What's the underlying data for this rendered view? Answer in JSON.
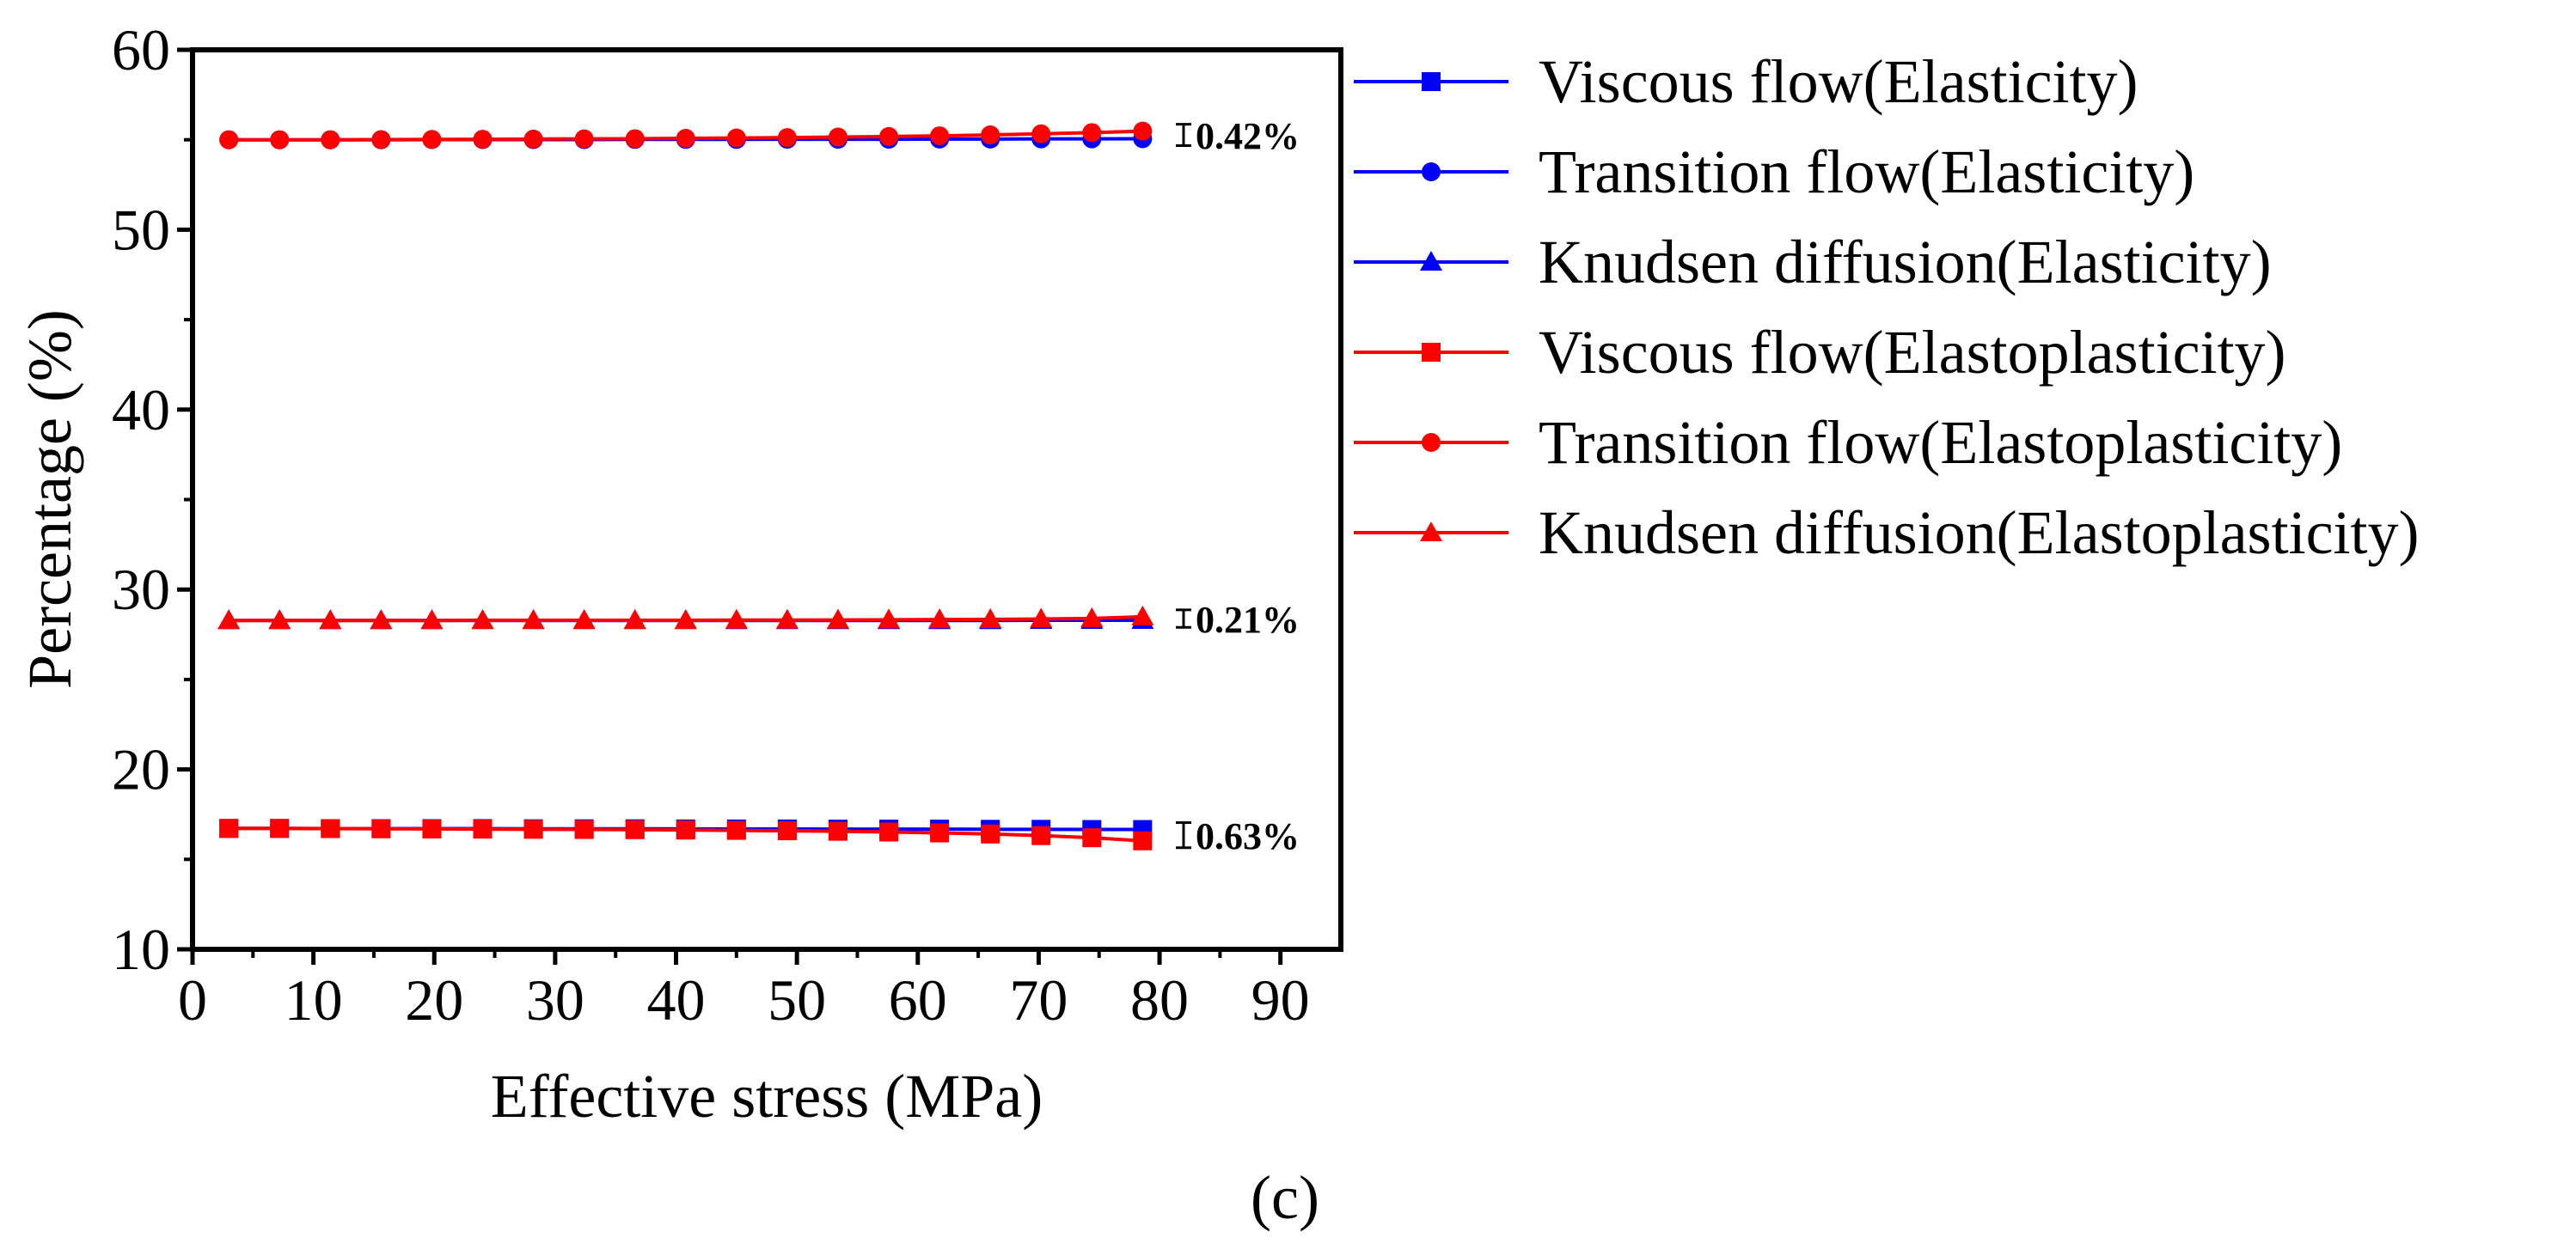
{
  "chart_data": {
    "type": "line",
    "title": "",
    "xlabel": "Effective stress (MPa)",
    "ylabel": "Percentage (%)",
    "xlim": [
      0,
      95
    ],
    "ylim": [
      10,
      60
    ],
    "xticks": [
      0,
      10,
      20,
      30,
      40,
      50,
      60,
      70,
      80,
      90
    ],
    "yticks": [
      10,
      20,
      30,
      40,
      50,
      60
    ],
    "grid": false,
    "legend_position": "outside-right",
    "panel_label": "(c)",
    "x": [
      3,
      7.2,
      11.4,
      15.6,
      19.8,
      24,
      28.2,
      32.4,
      36.6,
      40.8,
      45,
      49.2,
      53.4,
      57.6,
      61.8,
      66,
      70.2,
      74.4,
      78.6
    ],
    "series": [
      {
        "name": "Viscous flow(Elasticity)",
        "color": "#0000ff",
        "marker": "square",
        "values": [
          16.72,
          16.72,
          16.71,
          16.71,
          16.71,
          16.71,
          16.7,
          16.7,
          16.7,
          16.69,
          16.69,
          16.69,
          16.68,
          16.68,
          16.68,
          16.67,
          16.67,
          16.66,
          16.66
        ]
      },
      {
        "name": "Transition flow(Elasticity)",
        "color": "#0000ff",
        "marker": "circle",
        "values": [
          55.0,
          55.0,
          55.0,
          55.0,
          55.01,
          55.01,
          55.01,
          55.01,
          55.02,
          55.02,
          55.02,
          55.03,
          55.03,
          55.03,
          55.04,
          55.04,
          55.05,
          55.05,
          55.06
        ]
      },
      {
        "name": "Knudsen diffusion(Elasticity)",
        "color": "#0000ff",
        "marker": "triangle",
        "values": [
          28.28,
          28.28,
          28.28,
          28.28,
          28.28,
          28.28,
          28.28,
          28.28,
          28.28,
          28.28,
          28.28,
          28.28,
          28.28,
          28.28,
          28.28,
          28.28,
          28.29,
          28.29,
          28.29
        ]
      },
      {
        "name": "Viscous flow(Elastoplasticity)",
        "color": "#ff0000",
        "marker": "square",
        "values": [
          16.72,
          16.72,
          16.71,
          16.7,
          16.69,
          16.68,
          16.67,
          16.66,
          16.65,
          16.63,
          16.61,
          16.59,
          16.56,
          16.52,
          16.47,
          16.41,
          16.32,
          16.2,
          16.03
        ]
      },
      {
        "name": "Transition flow(Elastoplasticity)",
        "color": "#ff0000",
        "marker": "circle",
        "values": [
          55.0,
          55.0,
          55.0,
          55.01,
          55.02,
          55.03,
          55.04,
          55.05,
          55.06,
          55.08,
          55.1,
          55.12,
          55.15,
          55.18,
          55.22,
          55.27,
          55.33,
          55.4,
          55.48
        ]
      },
      {
        "name": "Knudsen diffusion(Elastoplasticity)",
        "color": "#ff0000",
        "marker": "triangle",
        "values": [
          28.28,
          28.28,
          28.28,
          28.28,
          28.28,
          28.29,
          28.29,
          28.29,
          28.29,
          28.29,
          28.3,
          28.3,
          28.31,
          28.32,
          28.33,
          28.34,
          28.36,
          28.39,
          28.49
        ]
      }
    ],
    "annotations": [
      {
        "text": "0.42%",
        "y_low": 55.06,
        "y_high": 55.48
      },
      {
        "text": "0.21%",
        "y_low": 28.28,
        "y_high": 28.49
      },
      {
        "text": "0.63%",
        "y_low": 16.03,
        "y_high": 16.66
      }
    ]
  }
}
